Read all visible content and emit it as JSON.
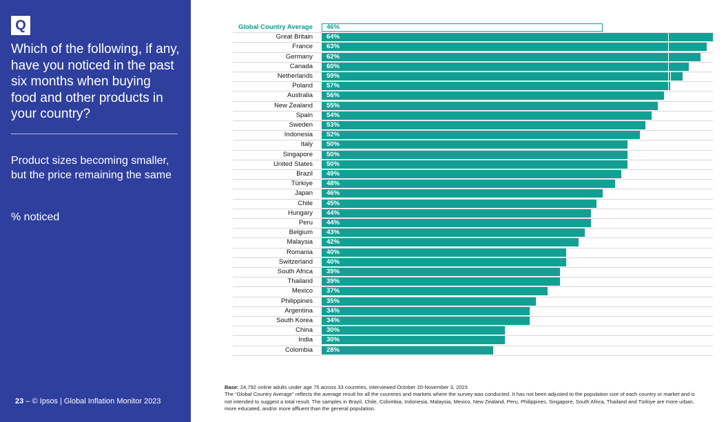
{
  "panel": {
    "badge": "Q",
    "question": "Which of the following, if any, have you noticed in the past six months when buying food and other products in your country?",
    "statement": "Product sizes becoming smaller, but the price remaining the same",
    "measure": "% noticed",
    "footer_page": "23",
    "footer_text": " – © Ipsos | Global Inflation Monitor 2023"
  },
  "notes": {
    "base_label": "Base:",
    "base_text": " 24,792 online adults under age 75 across 33 countries, interviewed October 20-November 3, 2023",
    "line2": "The “Global Country Average” reflects the average result for all the countries and markets where the survey was conducted. It has not been adjusted to the population size of each country or market and is not intended to suggest a total result. The samples in Brazil, Chile, Colombia, Indonesia, Malaysia, Mexico, New Zealand, Peru, Philippines, Singapore, South Africa, Thailand and Türkiye are more urban, more educated, and/or more affluent than the general population."
  },
  "chart_data": {
    "type": "bar",
    "orientation": "horizontal",
    "unit": "%",
    "xlim": [
      0,
      64
    ],
    "highlight_category": "Global Country Average",
    "categories": [
      "Global Country Average",
      "Great Britain",
      "France",
      "Germany",
      "Canada",
      "Netherlands",
      "Poland",
      "Australia",
      "New Zealand",
      "Spain",
      "Sweden",
      "Indonesia",
      "Italy",
      "Singapore",
      "United States",
      "Brazil",
      "Türkiye",
      "Japan",
      "Chile",
      "Hungary",
      "Peru",
      "Belgium",
      "Malaysia",
      "Romania",
      "Switzerland",
      "South Africa",
      "Thailand",
      "Mexico",
      "Philippines",
      "Argentina",
      "South Korea",
      "China",
      "India",
      "Colombia"
    ],
    "values": [
      46,
      64,
      63,
      62,
      60,
      59,
      57,
      56,
      55,
      54,
      53,
      52,
      50,
      50,
      50,
      49,
      48,
      46,
      45,
      44,
      44,
      43,
      42,
      40,
      40,
      39,
      39,
      37,
      35,
      34,
      34,
      30,
      30,
      28
    ],
    "value_labels": [
      "46%",
      "64%",
      "63%",
      "62%",
      "60%",
      "59%",
      "57%",
      "56%",
      "55%",
      "54%",
      "53%",
      "52%",
      "50%",
      "50%",
      "50%",
      "49%",
      "48%",
      "46%",
      "45%",
      "44%",
      "44%",
      "43%",
      "42%",
      "40%",
      "40%",
      "39%",
      "39%",
      "37%",
      "35%",
      "34%",
      "34%",
      "30%",
      "30%",
      "28%"
    ],
    "colors": {
      "bar": "#12a094",
      "highlight_text": "#0a9a8e",
      "panel": "#2e3f9e"
    }
  }
}
